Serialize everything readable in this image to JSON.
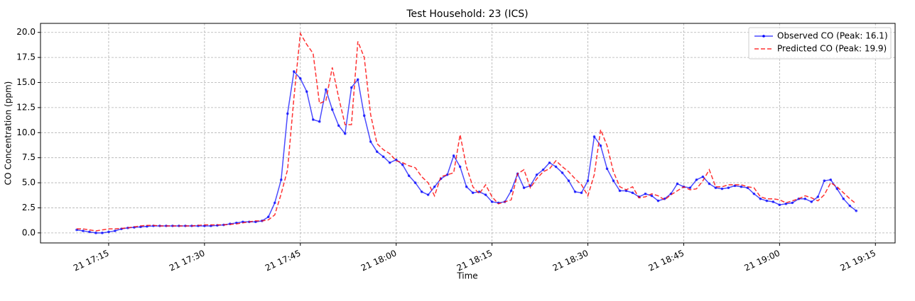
{
  "chart_data": {
    "type": "line",
    "title": "Test Household: 23 (ICS)",
    "x_label": "Time",
    "y_label": "CO Concentration (ppm)",
    "x": [
      "21 17:10",
      "21 17:11",
      "21 17:12",
      "21 17:13",
      "21 17:14",
      "21 17:15",
      "21 17:16",
      "21 17:17",
      "21 17:18",
      "21 17:19",
      "21 17:20",
      "21 17:21",
      "21 17:22",
      "21 17:23",
      "21 17:24",
      "21 17:25",
      "21 17:26",
      "21 17:27",
      "21 17:28",
      "21 17:29",
      "21 17:30",
      "21 17:31",
      "21 17:32",
      "21 17:33",
      "21 17:34",
      "21 17:35",
      "21 17:36",
      "21 17:37",
      "21 17:38",
      "21 17:39",
      "21 17:40",
      "21 17:41",
      "21 17:42",
      "21 17:43",
      "21 17:44",
      "21 17:45",
      "21 17:46",
      "21 17:47",
      "21 17:48",
      "21 17:49",
      "21 17:50",
      "21 17:51",
      "21 17:52",
      "21 17:53",
      "21 17:54",
      "21 17:55",
      "21 17:56",
      "21 17:57",
      "21 17:58",
      "21 17:59",
      "21 18:00",
      "21 18:01",
      "21 18:02",
      "21 18:03",
      "21 18:04",
      "21 18:05",
      "21 18:06",
      "21 18:07",
      "21 18:08",
      "21 18:09",
      "21 18:10",
      "21 18:11",
      "21 18:12",
      "21 18:13",
      "21 18:14",
      "21 18:15",
      "21 18:16",
      "21 18:17",
      "21 18:18",
      "21 18:19",
      "21 18:20",
      "21 18:21",
      "21 18:22",
      "21 18:23",
      "21 18:24",
      "21 18:25",
      "21 18:26",
      "21 18:27",
      "21 18:28",
      "21 18:29",
      "21 18:30",
      "21 18:31",
      "21 18:32",
      "21 18:33",
      "21 18:34",
      "21 18:35",
      "21 18:36",
      "21 18:37",
      "21 18:38",
      "21 18:39",
      "21 18:40",
      "21 18:41",
      "21 18:42",
      "21 18:43",
      "21 18:44",
      "21 18:45",
      "21 18:46",
      "21 18:47",
      "21 18:48",
      "21 18:49",
      "21 18:50",
      "21 18:51",
      "21 18:52",
      "21 18:53",
      "21 18:54",
      "21 18:55",
      "21 18:56",
      "21 18:57",
      "21 18:58",
      "21 18:59",
      "21 19:00",
      "21 19:01",
      "21 19:02",
      "21 19:03",
      "21 19:04",
      "21 19:05",
      "21 19:06",
      "21 19:07",
      "21 19:08",
      "21 19:09",
      "21 19:10",
      "21 19:11",
      "21 19:12"
    ],
    "series": [
      {
        "name": "Observed CO (Peak: 16.1)",
        "color": "#0000ff",
        "marker": true,
        "dash": false,
        "values": [
          0.3,
          0.2,
          0.1,
          0.0,
          0.0,
          0.1,
          0.2,
          0.4,
          0.5,
          0.55,
          0.6,
          0.65,
          0.7,
          0.7,
          0.7,
          0.7,
          0.7,
          0.7,
          0.7,
          0.7,
          0.7,
          0.7,
          0.75,
          0.8,
          0.9,
          1.0,
          1.1,
          1.1,
          1.1,
          1.2,
          1.6,
          3.0,
          5.3,
          11.9,
          16.1,
          15.4,
          14.1,
          11.3,
          11.1,
          14.3,
          12.3,
          10.7,
          9.9,
          14.5,
          15.3,
          11.7,
          9.1,
          8.1,
          7.6,
          7.0,
          7.3,
          6.8,
          5.7,
          5.0,
          4.1,
          3.8,
          4.6,
          5.4,
          5.8,
          7.7,
          6.6,
          4.6,
          4.0,
          4.1,
          3.8,
          3.1,
          3.0,
          3.1,
          4.2,
          5.9,
          4.5,
          4.7,
          5.8,
          6.3,
          7.0,
          6.6,
          6.0,
          5.2,
          4.1,
          4.0,
          5.2,
          9.6,
          8.7,
          6.4,
          5.2,
          4.2,
          4.2,
          4.0,
          3.6,
          3.9,
          3.7,
          3.2,
          3.4,
          3.9,
          4.9,
          4.6,
          4.5,
          5.3,
          5.6,
          4.9,
          4.5,
          4.4,
          4.5,
          4.7,
          4.6,
          4.5,
          3.9,
          3.4,
          3.2,
          3.1,
          2.8,
          2.9,
          3.0,
          3.4,
          3.4,
          3.1,
          3.6,
          5.2,
          5.3,
          4.4,
          3.4,
          2.7,
          2.2
        ]
      },
      {
        "name": "Predicted CO (Peak: 19.9)",
        "color": "#ff0000",
        "marker": false,
        "dash": true,
        "values": [
          0.4,
          0.4,
          0.3,
          0.2,
          0.3,
          0.4,
          0.4,
          0.45,
          0.5,
          0.6,
          0.7,
          0.75,
          0.75,
          0.7,
          0.7,
          0.7,
          0.7,
          0.7,
          0.7,
          0.75,
          0.8,
          0.8,
          0.8,
          0.8,
          0.85,
          0.9,
          1.0,
          1.1,
          1.2,
          1.2,
          1.3,
          1.8,
          3.9,
          6.3,
          13.5,
          19.9,
          18.8,
          17.9,
          12.9,
          13.2,
          16.5,
          13.5,
          10.8,
          10.8,
          19.1,
          17.5,
          11.8,
          8.9,
          8.3,
          7.9,
          7.2,
          7.0,
          6.7,
          6.5,
          5.6,
          5.0,
          3.7,
          5.6,
          5.8,
          6.0,
          9.8,
          6.6,
          4.6,
          3.9,
          4.8,
          3.6,
          2.9,
          3.1,
          3.3,
          5.9,
          6.3,
          4.5,
          5.4,
          6.1,
          6.4,
          7.2,
          6.6,
          6.1,
          5.4,
          4.8,
          3.7,
          5.8,
          10.3,
          8.7,
          6.1,
          4.6,
          4.3,
          4.6,
          3.5,
          3.6,
          3.9,
          3.7,
          3.3,
          3.8,
          4.2,
          4.6,
          4.3,
          4.4,
          5.2,
          6.3,
          4.6,
          4.6,
          4.8,
          4.8,
          4.8,
          4.6,
          4.5,
          3.6,
          3.4,
          3.4,
          3.3,
          3.0,
          3.2,
          3.4,
          3.7,
          3.5,
          3.2,
          3.8,
          5.0,
          4.6,
          4.0,
          3.4,
          2.9
        ]
      }
    ],
    "xlim": [
      "21 17:04:20",
      "21 19:18:05"
    ],
    "xticks": [
      "21 17:15",
      "21 17:30",
      "21 17:45",
      "21 18:00",
      "21 18:15",
      "21 18:30",
      "21 18:45",
      "21 19:00",
      "21 19:15"
    ],
    "ylim": [
      -1.0,
      20.9
    ],
    "yticks": [
      {
        "value": 0,
        "label": "0.0"
      },
      {
        "value": 2.5,
        "label": "2.5"
      },
      {
        "value": 5,
        "label": "5.0"
      },
      {
        "value": 7.5,
        "label": "7.5"
      },
      {
        "value": 10,
        "label": "10.0"
      },
      {
        "value": 12.5,
        "label": "12.5"
      },
      {
        "value": 15,
        "label": "15.0"
      },
      {
        "value": 17.5,
        "label": "17.5"
      },
      {
        "value": 20,
        "label": "20.0"
      }
    ],
    "grid": true,
    "legend": "upper right"
  }
}
